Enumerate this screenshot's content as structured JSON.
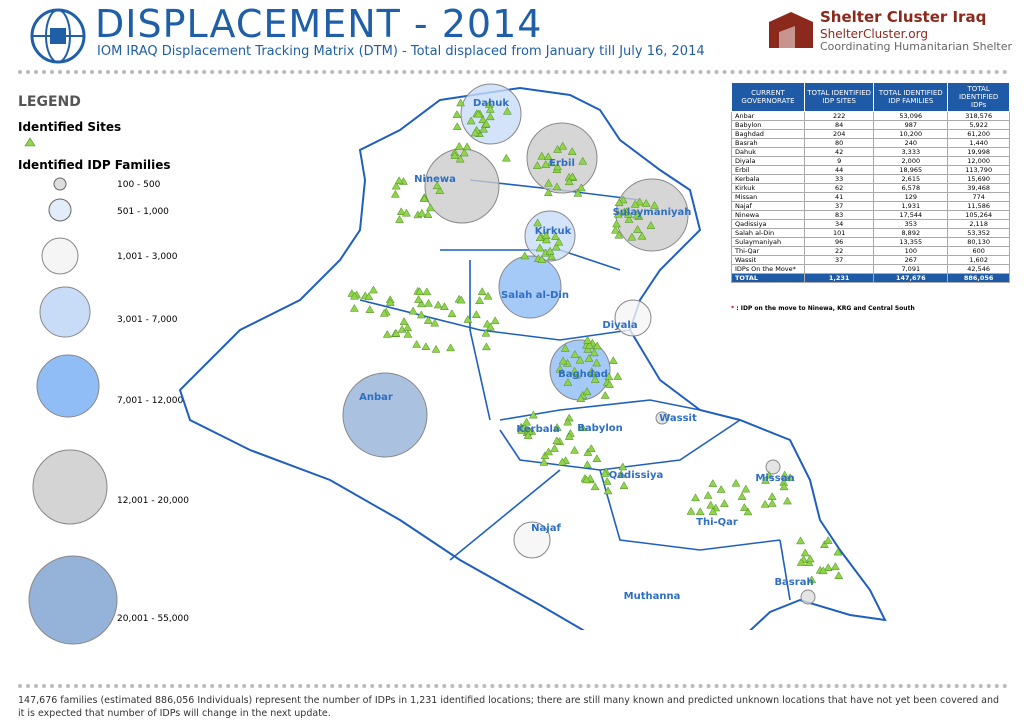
{
  "header": {
    "title": "DISPLACEMENT - 2014",
    "subtitle": "IOM IRAQ Displacement Tracking Matrix (DTM) - Total displaced from January till July 16, 2014",
    "org": "Shelter Cluster Iraq",
    "org_site": "ShelterCluster.org",
    "org_tagline": "Coordinating Humanitarian Shelter"
  },
  "legend": {
    "title": "LEGEND",
    "sites_label": "Identified Sites",
    "families_label": "Identified IDP Families",
    "classes": [
      "100 - 500",
      "501 - 1,000",
      "1,001 - 3,000",
      "3,001 - 7,000",
      "7,001 - 12,000",
      "12,001 - 20,000",
      "20,001 - 55,000"
    ]
  },
  "map": {
    "labels": [
      "Dahuk",
      "Erbil",
      "Ninewa",
      "Sulaymaniyah",
      "Kirkuk",
      "Salah al-Din",
      "Diyala",
      "Anbar",
      "Baghdad",
      "Wassit",
      "Kerbala",
      "Babylon",
      "Qadissiya",
      "Missan",
      "Najaf",
      "Thi-Qar",
      "Basrah",
      "Muthanna"
    ]
  },
  "table": {
    "columns": [
      "CURRENT GOVERNORATE",
      "TOTAL IDENTIFIED IDP SITES",
      "TOTAL IDENTIFIED IDP FAMILIES",
      "TOTAL IDENTIFIED IDPs"
    ],
    "rows": [
      [
        "Anbar",
        "222",
        "53,096",
        "318,576"
      ],
      [
        "Babylon",
        "84",
        "987",
        "5,922"
      ],
      [
        "Baghdad",
        "204",
        "10,200",
        "61,200"
      ],
      [
        "Basrah",
        "80",
        "240",
        "1,440"
      ],
      [
        "Dahuk",
        "42",
        "3,333",
        "19,998"
      ],
      [
        "Diyala",
        "9",
        "2,000",
        "12,000"
      ],
      [
        "Erbil",
        "44",
        "18,965",
        "113,790"
      ],
      [
        "Kerbala",
        "33",
        "2,615",
        "15,690"
      ],
      [
        "Kirkuk",
        "62",
        "6,578",
        "39,468"
      ],
      [
        "Missan",
        "41",
        "129",
        "774"
      ],
      [
        "Najaf",
        "37",
        "1,931",
        "11,586"
      ],
      [
        "Ninewa",
        "83",
        "17,544",
        "105,264"
      ],
      [
        "Qadissiya",
        "34",
        "353",
        "2,118"
      ],
      [
        "Salah al-Din",
        "101",
        "8,892",
        "53,352"
      ],
      [
        "Sulaymaniyah",
        "96",
        "13,355",
        "80,130"
      ],
      [
        "Thi-Qar",
        "22",
        "100",
        "600"
      ],
      [
        "Wassit",
        "37",
        "267",
        "1,602"
      ],
      [
        "IDPs On the Move*",
        null,
        "7,091",
        "42,546"
      ]
    ],
    "total": [
      "TOTAL",
      "1,231",
      "147,676",
      "886,056"
    ]
  },
  "footnote": {
    "marker": "*",
    "text": ": IDP on the move to Ninewa, KRG and Central South"
  },
  "footer": "147,676 families (estimated 886,056 Individuals) represent the number of IDPs in 1,231 identified locations; there are still many known and predicted unknown locations that have not yet been covered and it is expected that number of IDPs will change in the next update."
}
